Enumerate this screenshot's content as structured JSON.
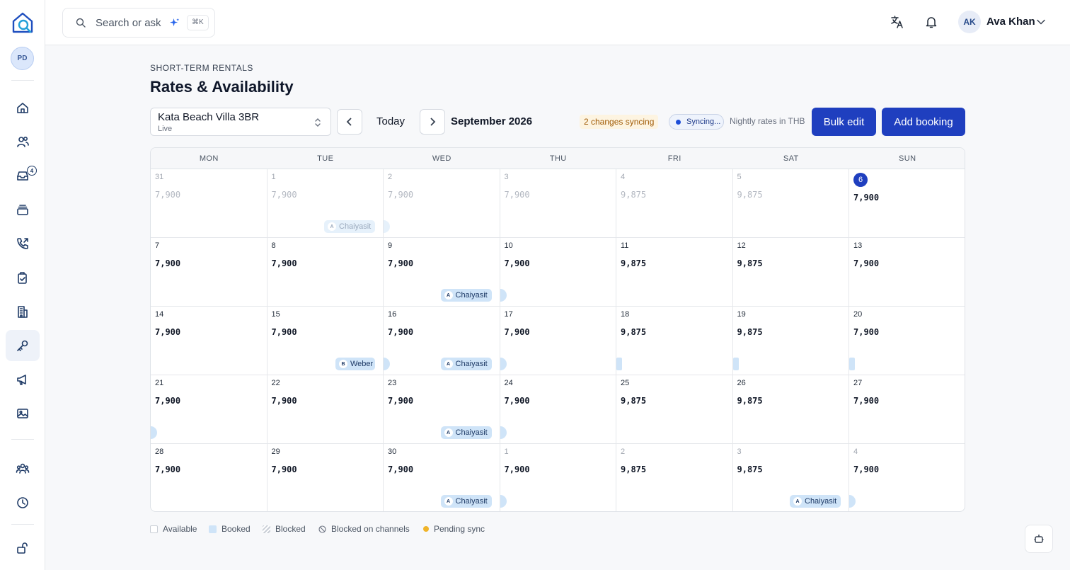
{
  "sidebar": {
    "workspace_initials": "PD",
    "nav": [
      {
        "icon": "home-icon",
        "top": 130
      },
      {
        "icon": "users-icon",
        "top": 178
      },
      {
        "icon": "inbox-icon",
        "top": 226,
        "badge": "4"
      },
      {
        "icon": "stack-icon",
        "top": 274
      },
      {
        "icon": "phone-icon",
        "top": 322
      },
      {
        "icon": "clipboard-icon",
        "top": 370
      },
      {
        "icon": "building-icon",
        "top": 418
      },
      {
        "icon": "key-icon",
        "top": 466,
        "active": true
      },
      {
        "icon": "megaphone-icon",
        "top": 514
      },
      {
        "icon": "image-icon",
        "top": 562
      },
      {
        "icon": "team-icon",
        "top": 640
      },
      {
        "icon": "clock-icon",
        "top": 688
      },
      {
        "icon": "unlock-icon",
        "top": 752
      }
    ]
  },
  "topbar": {
    "search_placeholder": "Search or ask",
    "search_shortcut": "⌘K",
    "user_initials": "AK",
    "user_name": "Ava Khan"
  },
  "page": {
    "eyebrow": "SHORT-TERM RENTALS",
    "title": "Rates & Availability"
  },
  "toolbar": {
    "property_name": "Kata Beach Villa 3BR",
    "property_status": "Live",
    "today_label": "Today",
    "month_label": "September 2026",
    "changes_badge": "2 changes syncing",
    "sync_status": "Syncing...",
    "rates_note": "Nightly rates in THB",
    "bulk_edit_label": "Bulk edit",
    "add_booking_label": "Add booking"
  },
  "calendar": {
    "weekdays": [
      "MON",
      "TUE",
      "WED",
      "THU",
      "FRI",
      "SAT",
      "SUN"
    ],
    "weeks": [
      [
        {
          "day": "31",
          "rate": "7,900",
          "muted": true
        },
        {
          "day": "1",
          "rate": "7,900",
          "muted": true
        },
        {
          "day": "2",
          "rate": "7,900",
          "muted": true
        },
        {
          "day": "3",
          "rate": "7,900",
          "muted": true
        },
        {
          "day": "4",
          "rate": "9,875",
          "muted": true
        },
        {
          "day": "5",
          "rate": "9,875",
          "muted": true
        },
        {
          "day": "6",
          "rate": "7,900",
          "today": true
        }
      ],
      [
        {
          "day": "7",
          "rate": "7,900"
        },
        {
          "day": "8",
          "rate": "7,900"
        },
        {
          "day": "9",
          "rate": "7,900"
        },
        {
          "day": "10",
          "rate": "7,900"
        },
        {
          "day": "11",
          "rate": "9,875"
        },
        {
          "day": "12",
          "rate": "9,875"
        },
        {
          "day": "13",
          "rate": "7,900"
        }
      ],
      [
        {
          "day": "14",
          "rate": "7,900"
        },
        {
          "day": "15",
          "rate": "7,900"
        },
        {
          "day": "16",
          "rate": "7,900"
        },
        {
          "day": "17",
          "rate": "7,900"
        },
        {
          "day": "18",
          "rate": "9,875"
        },
        {
          "day": "19",
          "rate": "9,875"
        },
        {
          "day": "20",
          "rate": "7,900"
        }
      ],
      [
        {
          "day": "21",
          "rate": "7,900"
        },
        {
          "day": "22",
          "rate": "7,900"
        },
        {
          "day": "23",
          "rate": "7,900"
        },
        {
          "day": "24",
          "rate": "7,900"
        },
        {
          "day": "25",
          "rate": "9,875"
        },
        {
          "day": "26",
          "rate": "9,875"
        },
        {
          "day": "27",
          "rate": "7,900"
        }
      ],
      [
        {
          "day": "28",
          "rate": "7,900"
        },
        {
          "day": "29",
          "rate": "7,900"
        },
        {
          "day": "30",
          "rate": "7,900"
        },
        {
          "day": "1",
          "rate": "7,900",
          "muted": true,
          "strong": true
        },
        {
          "day": "2",
          "rate": "9,875",
          "muted": true,
          "strong": true
        },
        {
          "day": "3",
          "rate": "9,875",
          "muted": true,
          "strong": true
        },
        {
          "day": "4",
          "rate": "7,900",
          "muted": true,
          "strong": true
        }
      ]
    ],
    "bookings": [
      {
        "guest": "Chaiyasit",
        "initial": "A",
        "week": 0,
        "col": 1,
        "faded": true
      },
      {
        "guest": "Chaiyasit",
        "initial": "A",
        "week": 1,
        "col": 2
      },
      {
        "guest": "Weber",
        "initial": "B",
        "week": 2,
        "col": 1
      },
      {
        "guest": "Chaiyasit",
        "initial": "A",
        "week": 2,
        "col": 2
      },
      {
        "guest": "Chaiyasit",
        "initial": "A",
        "week": 3,
        "col": 2
      },
      {
        "guest": "Chaiyasit",
        "initial": "A",
        "week": 4,
        "col": 2
      },
      {
        "guest": "Chaiyasit",
        "initial": "A",
        "week": 4,
        "col": 5
      }
    ]
  },
  "legend": {
    "available": "Available",
    "booked": "Booked",
    "blocked": "Blocked",
    "blocked_channels": "Blocked on channels",
    "pending": "Pending sync"
  },
  "colors": {
    "accent": "#1f3fbf",
    "booked": "#cfe4f8",
    "pending": "#f0b429"
  }
}
